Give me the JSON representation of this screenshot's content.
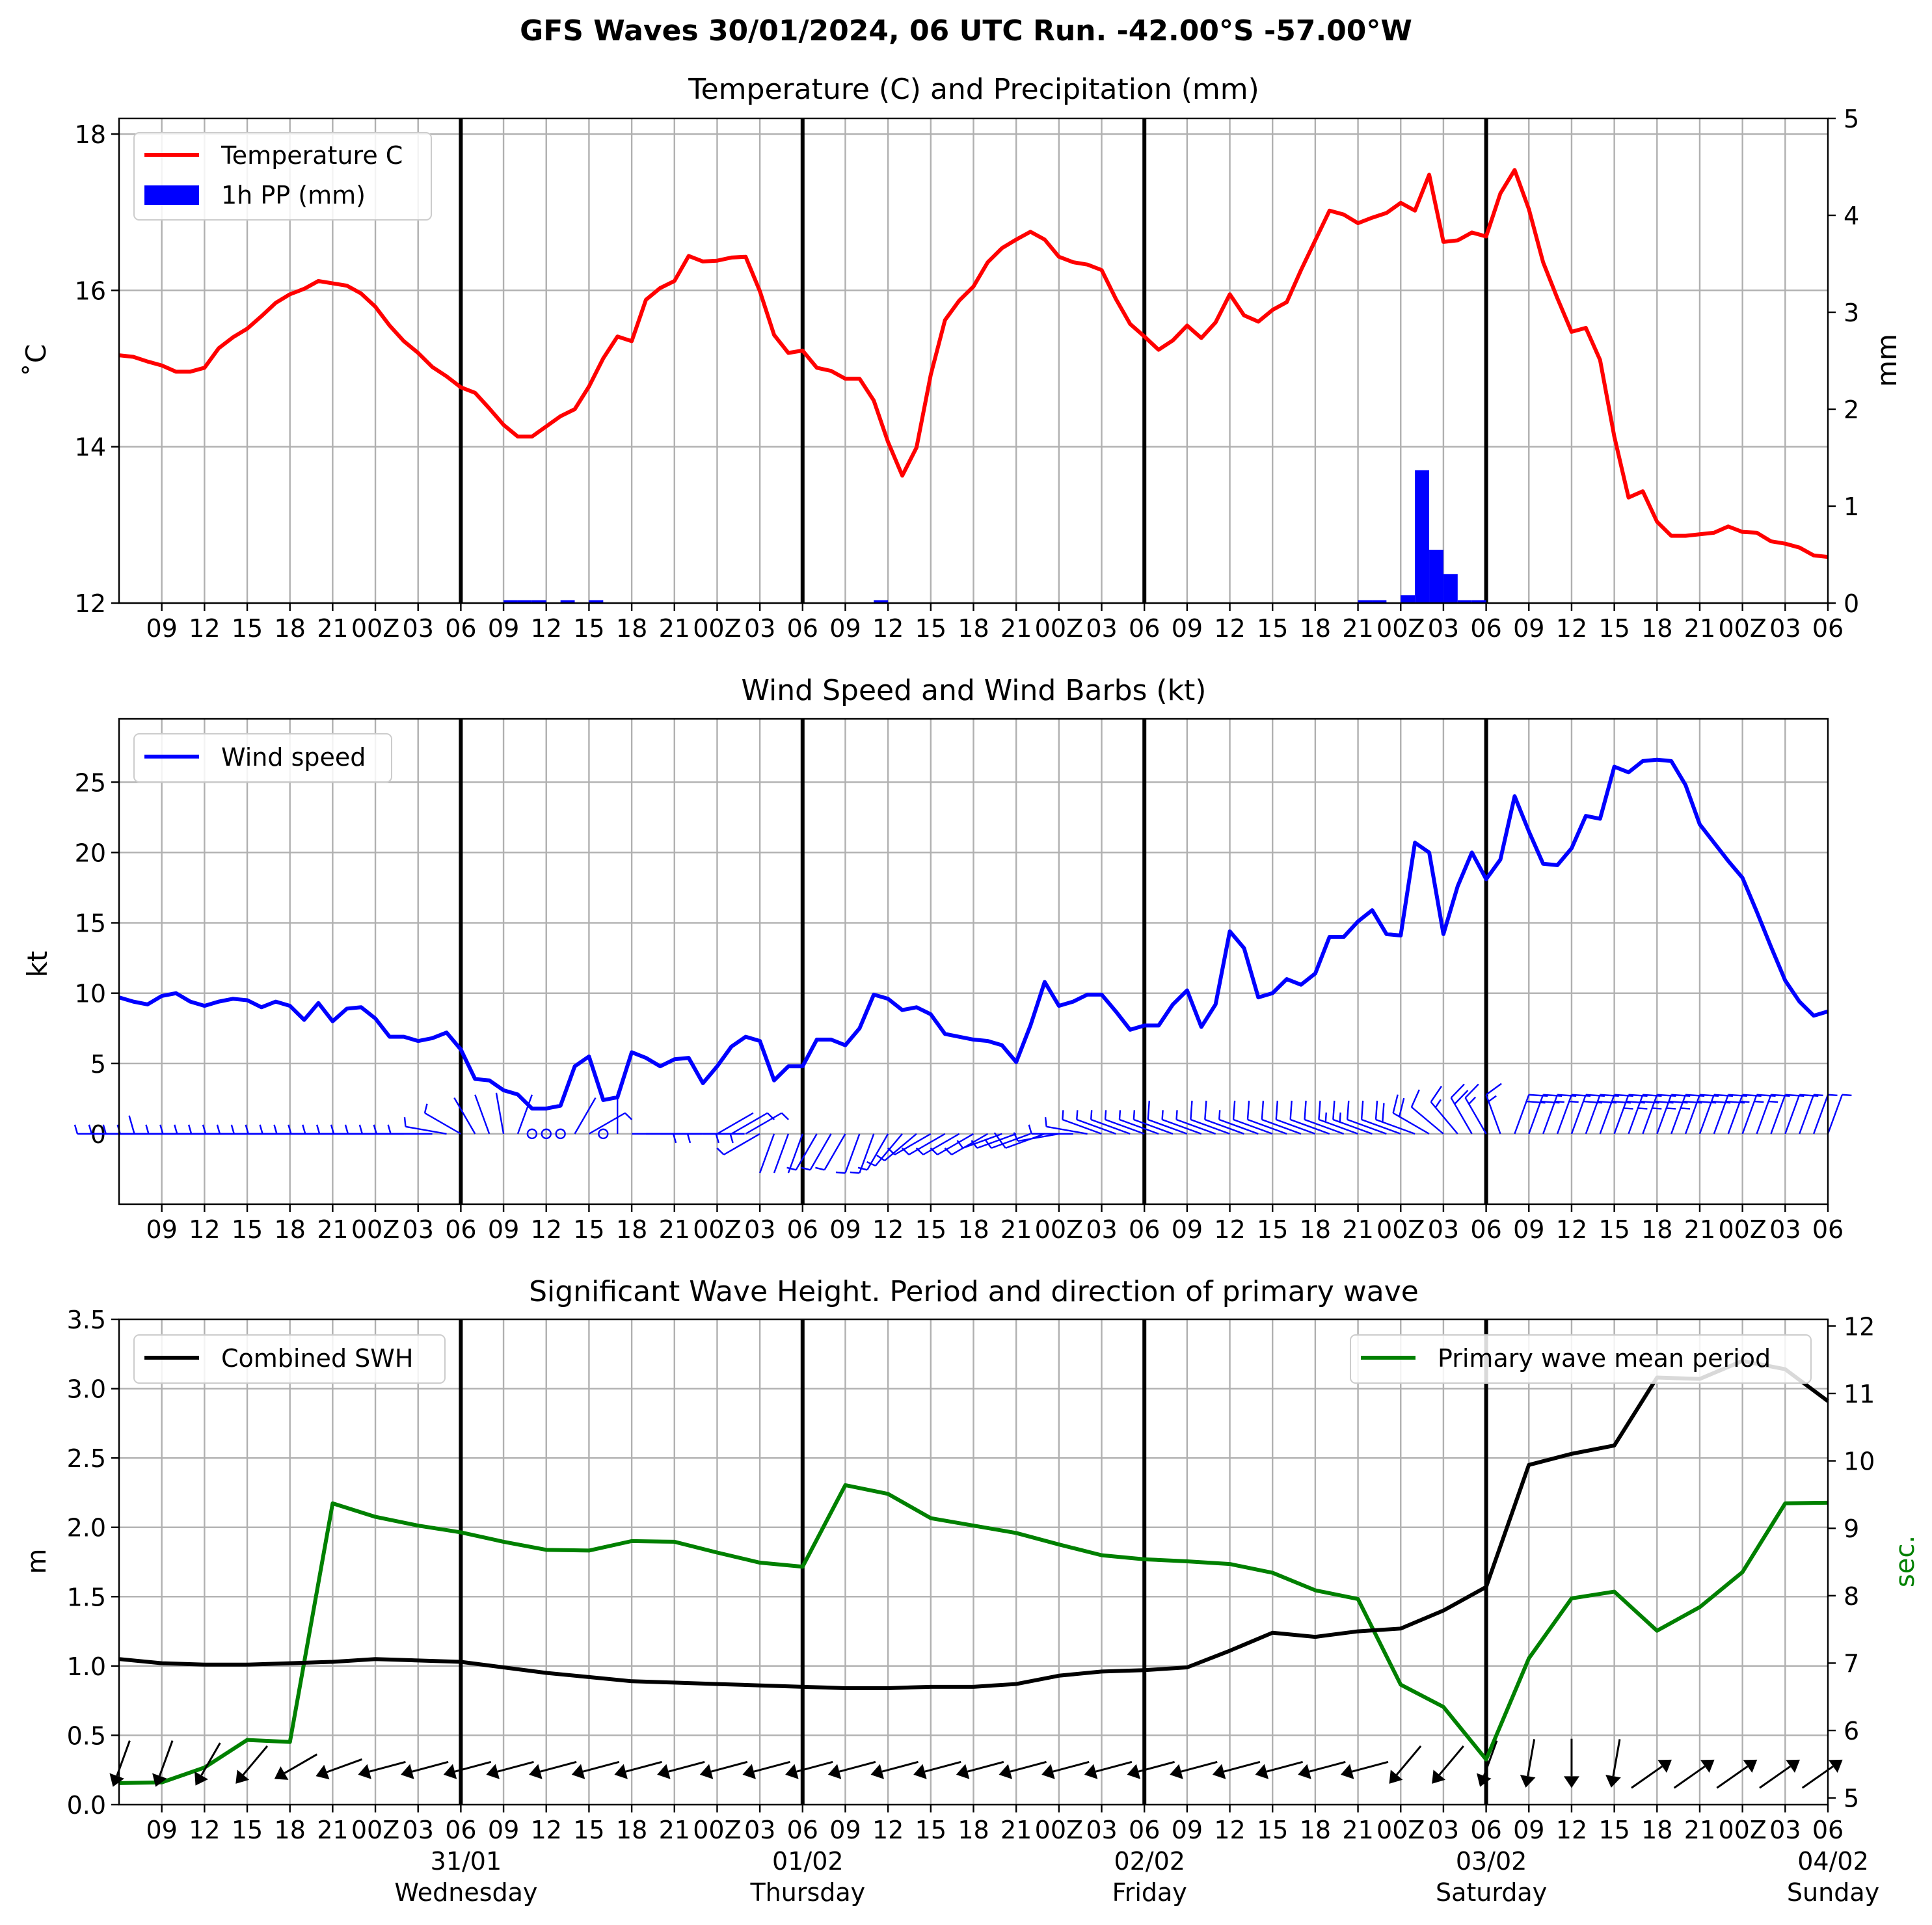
{
  "suptitle": "GFS Waves 30/01/2024, 06 UTC Run. -42.00°S -57.00°W",
  "colors": {
    "temperature": "#ff0000",
    "precip": "#0000ff",
    "wind": "#0000ff",
    "swh": "#000000",
    "period": "#008000",
    "grid": "#b0b0b0"
  },
  "time_axis": {
    "tick_labels": [
      "09",
      "12",
      "15",
      "18",
      "21",
      "00Z",
      "03",
      "06",
      "09",
      "12",
      "15",
      "18",
      "21",
      "00Z",
      "03",
      "06",
      "09",
      "12",
      "15",
      "18",
      "21",
      "00Z",
      "03",
      "06",
      "09",
      "12",
      "15",
      "18",
      "21",
      "00Z",
      "03",
      "06",
      "09",
      "12",
      "15",
      "18",
      "21",
      "00Z",
      "03",
      "06"
    ],
    "day_labels": [
      {
        "date": "31/01",
        "day": "Wednesday"
      },
      {
        "date": "01/02",
        "day": "Thursday"
      },
      {
        "date": "02/02",
        "day": "Friday"
      },
      {
        "date": "03/02",
        "day": "Saturday"
      },
      {
        "date": "04/02",
        "day": "Sunday"
      }
    ]
  },
  "chart_data": [
    {
      "type": "line",
      "title": "Temperature (C) and Precipitation (mm)",
      "x_unit": "hours since 30/01/2024 06 UTC",
      "xlim": [
        0,
        120
      ],
      "ylabel": "$^\\circ$C",
      "ylabel_display": "˚C",
      "ylim": [
        12,
        18.2
      ],
      "yticks": [
        "12",
        "14",
        "16",
        "18"
      ],
      "y2label": "mm",
      "y2lim": [
        0,
        5
      ],
      "y2ticks": [
        "0",
        "1",
        "2",
        "3",
        "4",
        "5"
      ],
      "grid": true,
      "legend": {
        "placement": "top-left",
        "entries": [
          "Temperature C",
          "1h PP (mm)"
        ]
      },
      "series": [
        {
          "name": "Temperature C",
          "kind": "line",
          "y": [
            15.17,
            15.15,
            15.09,
            15.04,
            14.96,
            14.96,
            15.01,
            15.26,
            15.4,
            15.51,
            15.67,
            15.84,
            15.95,
            16.02,
            16.12,
            16.09,
            16.06,
            15.96,
            15.79,
            15.55,
            15.35,
            15.2,
            15.02,
            14.9,
            14.76,
            14.69,
            14.49,
            14.28,
            14.13,
            14.13,
            14.26,
            14.39,
            14.48,
            14.77,
            15.13,
            15.41,
            15.35,
            15.88,
            16.03,
            16.12,
            16.44,
            16.37,
            16.38,
            16.42,
            16.43,
            15.99,
            15.43,
            15.2,
            15.23,
            15.01,
            14.97,
            14.87,
            14.87,
            14.59,
            14.06,
            13.63,
            13.99,
            14.92,
            15.62,
            15.87,
            16.05,
            16.36,
            16.54,
            16.65,
            16.75,
            16.65,
            16.43,
            16.36,
            16.33,
            16.26,
            15.89,
            15.57,
            15.41,
            15.24,
            15.36,
            15.55,
            15.39,
            15.59,
            15.95,
            15.68,
            15.6,
            15.75,
            15.85,
            16.26,
            16.64,
            17.02,
            16.97,
            16.86,
            16.93,
            16.99,
            17.12,
            17.02,
            17.48,
            16.62,
            16.64,
            16.74,
            16.69,
            17.24,
            17.54,
            17.04,
            16.36,
            15.9,
            15.47,
            15.52,
            15.11,
            14.13,
            13.35,
            13.43,
            13.04,
            12.86,
            12.86,
            12.88,
            12.9,
            12.98,
            12.91,
            12.9,
            12.79,
            12.76,
            12.71,
            12.61,
            12.59
          ]
        },
        {
          "name": "1h PP (mm)",
          "kind": "bar",
          "axis": "right",
          "bars": [
            {
              "x": 27,
              "value": 0.03
            },
            {
              "x": 28,
              "value": 0.03
            },
            {
              "x": 29,
              "value": 0.03
            },
            {
              "x": 31,
              "value": 0.03
            },
            {
              "x": 33,
              "value": 0.03
            },
            {
              "x": 53,
              "value": 0.03
            },
            {
              "x": 87,
              "value": 0.03
            },
            {
              "x": 88,
              "value": 0.03
            },
            {
              "x": 90,
              "value": 0.08
            },
            {
              "x": 91,
              "value": 1.37
            },
            {
              "x": 92,
              "value": 0.55
            },
            {
              "x": 93,
              "value": 0.3
            },
            {
              "x": 94,
              "value": 0.03
            },
            {
              "x": 95,
              "value": 0.03
            }
          ]
        }
      ]
    },
    {
      "type": "line",
      "title": "Wind Speed and Wind Barbs (kt)",
      "x_unit": "hours since 30/01/2024 06 UTC",
      "xlim": [
        0,
        120
      ],
      "ylabel": "kt",
      "ylim": [
        -5,
        29.5
      ],
      "yticks": [
        "0",
        "5",
        "10",
        "15",
        "20",
        "25"
      ],
      "grid": true,
      "legend": {
        "placement": "top-left",
        "entries": [
          "Wind speed"
        ]
      },
      "series": [
        {
          "name": "Wind speed",
          "kind": "line",
          "y": [
            9.7,
            9.4,
            9.2,
            9.8,
            10.0,
            9.4,
            9.1,
            9.4,
            9.6,
            9.5,
            9.0,
            9.4,
            9.1,
            8.1,
            9.3,
            8.0,
            8.9,
            9.0,
            8.2,
            6.9,
            6.9,
            6.6,
            6.8,
            7.2,
            6.0,
            3.9,
            3.8,
            3.1,
            2.8,
            1.8,
            1.8,
            2.0,
            4.8,
            5.5,
            2.4,
            2.6,
            5.8,
            5.4,
            4.8,
            5.3,
            5.4,
            3.6,
            4.8,
            6.2,
            6.9,
            6.6,
            3.8,
            4.8,
            4.8,
            6.7,
            6.7,
            6.3,
            7.5,
            9.9,
            9.6,
            8.8,
            9.0,
            8.5,
            7.1,
            6.9,
            6.7,
            6.6,
            6.3,
            5.1,
            7.7,
            10.8,
            9.1,
            9.4,
            9.9,
            9.9,
            8.7,
            7.4,
            7.7,
            7.7,
            9.2,
            10.2,
            7.6,
            9.2,
            14.4,
            13.2,
            9.7,
            10.0,
            11.0,
            10.6,
            11.4,
            14.0,
            14.0,
            15.1,
            15.9,
            14.2,
            14.1,
            20.7,
            20.0,
            14.2,
            17.6,
            20.0,
            18.1,
            19.5,
            24.0,
            21.5,
            19.2,
            19.1,
            20.3,
            22.6,
            22.4,
            26.1,
            25.7,
            26.5,
            26.6,
            26.5,
            24.8,
            22.0,
            20.7,
            19.4,
            18.2,
            15.8,
            13.3,
            10.9,
            9.4,
            8.4,
            8.7
          ]
        },
        {
          "name": "barbs",
          "kind": "barbs",
          "direction_deg": [
            270,
            270,
            270,
            270,
            270,
            270,
            270,
            270,
            270,
            270,
            270,
            270,
            270,
            270,
            270,
            270,
            270,
            270,
            270,
            270,
            270,
            270,
            270,
            280,
            300,
            330,
            340,
            350,
            20,
            0,
            0,
            0,
            30,
            60,
            0,
            0,
            90,
            90,
            90,
            90,
            90,
            90,
            60,
            60,
            60,
            240,
            200,
            200,
            200,
            210,
            210,
            210,
            200,
            200,
            210,
            220,
            230,
            240,
            240,
            240,
            240,
            240,
            250,
            250,
            250,
            250,
            260,
            270,
            280,
            290,
            290,
            290,
            290,
            290,
            290,
            290,
            290,
            290,
            290,
            290,
            290,
            290,
            290,
            290,
            290,
            290,
            290,
            290,
            290,
            290,
            290,
            290,
            300,
            310,
            320,
            330,
            330,
            340,
            20,
            20,
            20,
            20,
            20,
            20,
            20,
            20,
            20,
            20,
            20,
            20,
            20,
            20,
            20,
            20,
            20,
            20,
            20,
            20,
            20,
            20,
            20
          ]
        }
      ]
    },
    {
      "type": "line",
      "title": "Significant Wave Height. Period and direction of primary wave",
      "x_unit": "hours since 30/01/2024 06 UTC",
      "xlim": [
        0,
        120
      ],
      "ylabel": "m",
      "ylim": [
        0,
        3.5
      ],
      "yticks": [
        "0.0",
        "0.5",
        "1.0",
        "1.5",
        "2.0",
        "2.5",
        "3.0",
        "3.5"
      ],
      "y2label": "sec.",
      "y2lim": [
        4.9,
        12.1
      ],
      "y2ticks": [
        "5",
        "6",
        "7",
        "8",
        "9",
        "10",
        "11",
        "12"
      ],
      "grid": true,
      "legend": [
        {
          "placement": "top-left",
          "entries": [
            "Combined SWH"
          ]
        },
        {
          "placement": "top-right",
          "entries": [
            "Primary wave mean period"
          ]
        }
      ],
      "x": [
        0,
        3,
        6,
        9,
        12,
        15,
        18,
        21,
        24,
        27,
        30,
        33,
        36,
        39,
        42,
        45,
        48,
        51,
        54,
        57,
        60,
        63,
        66,
        69,
        72,
        75,
        78,
        81,
        84,
        87,
        90,
        93,
        96,
        99,
        102,
        105,
        108,
        111,
        114,
        117,
        120
      ],
      "series": [
        {
          "name": "Combined SWH",
          "axis": "left",
          "y": [
            1.05,
            1.02,
            1.01,
            1.01,
            1.02,
            1.03,
            1.05,
            1.04,
            1.03,
            0.99,
            0.95,
            0.92,
            0.89,
            0.88,
            0.87,
            0.86,
            0.85,
            0.84,
            0.84,
            0.85,
            0.85,
            0.87,
            0.93,
            0.96,
            0.97,
            0.99,
            1.11,
            1.24,
            1.21,
            1.25,
            1.27,
            1.4,
            1.57,
            2.45,
            2.53,
            2.59,
            3.08,
            3.07,
            3.2,
            3.14,
            2.91
          ]
        },
        {
          "name": "Primary wave mean period",
          "axis": "right",
          "y": [
            5.22,
            5.23,
            5.45,
            5.86,
            5.83,
            9.37,
            9.17,
            9.04,
            8.94,
            8.8,
            8.68,
            8.67,
            8.81,
            8.8,
            8.64,
            8.49,
            8.43,
            9.64,
            9.51,
            9.15,
            9.04,
            8.93,
            8.76,
            8.6,
            8.54,
            8.51,
            8.47,
            8.34,
            8.08,
            7.95,
            6.68,
            6.35,
            5.57,
            7.07,
            7.96,
            8.06,
            7.48,
            7.83,
            8.35,
            9.37,
            9.38
          ]
        },
        {
          "name": "direction",
          "kind": "arrows",
          "direction_deg": [
            20,
            20,
            30,
            40,
            60,
            70,
            75,
            75,
            75,
            75,
            75,
            75,
            75,
            75,
            75,
            75,
            75,
            75,
            75,
            75,
            75,
            75,
            75,
            75,
            75,
            75,
            75,
            75,
            75,
            75,
            40,
            40,
            20,
            10,
            0,
            10,
            235,
            235,
            235,
            235,
            235
          ]
        }
      ]
    }
  ]
}
